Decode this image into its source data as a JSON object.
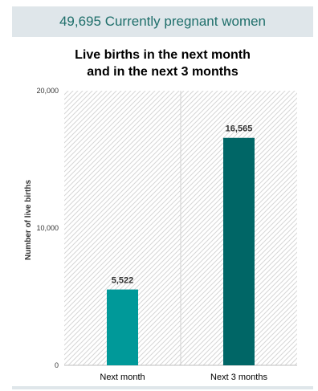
{
  "header": {
    "banner_text": "49,695 Currently pregnant women"
  },
  "chart_data": {
    "type": "bar",
    "title_line1": "Live births in the next month",
    "title_line2": "and in the next 3 months",
    "ylabel": "Number of live births",
    "xlabel": "",
    "categories": [
      "Next month",
      "Next 3 months"
    ],
    "values": [
      5522,
      16565
    ],
    "value_labels": [
      "5,522",
      "16,565"
    ],
    "bar_colors": [
      "#009999",
      "#006666"
    ],
    "ylim": [
      0,
      20000
    ],
    "yticks": [
      0,
      10000,
      20000
    ],
    "ytick_labels": [
      "0",
      "10,000",
      "20,000"
    ],
    "grid": false,
    "background_pattern": "diagonal-hatch"
  }
}
